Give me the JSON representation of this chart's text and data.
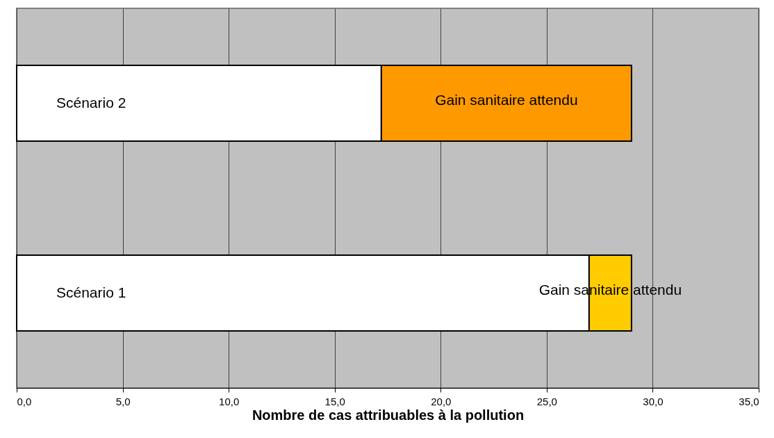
{
  "chart_data": {
    "type": "bar",
    "orientation": "horizontal",
    "stacked": true,
    "xlabel": "Nombre de cas attribuables à la pollution",
    "categories": [
      "Scénario 2",
      "Scénario 1"
    ],
    "series": [
      {
        "color": "#ffffff",
        "values": [
          17.2,
          27.0
        ]
      },
      {
        "name": "Gain sanitaire attendu",
        "colors": [
          "#ff9900",
          "#ffcc00"
        ],
        "values": [
          11.8,
          2.0
        ]
      }
    ],
    "xlim": [
      0,
      35
    ],
    "xticks": [
      {
        "value": 0,
        "label": "0,0"
      },
      {
        "value": 5,
        "label": "5,0"
      },
      {
        "value": 10,
        "label": "10,0"
      },
      {
        "value": 15,
        "label": "15,0"
      },
      {
        "value": 20,
        "label": "20,0"
      },
      {
        "value": 25,
        "label": "25,0"
      },
      {
        "value": 30,
        "label": "30,0"
      },
      {
        "value": 35,
        "label": "35,0"
      }
    ],
    "grid": "x",
    "tick_labels": "x"
  }
}
